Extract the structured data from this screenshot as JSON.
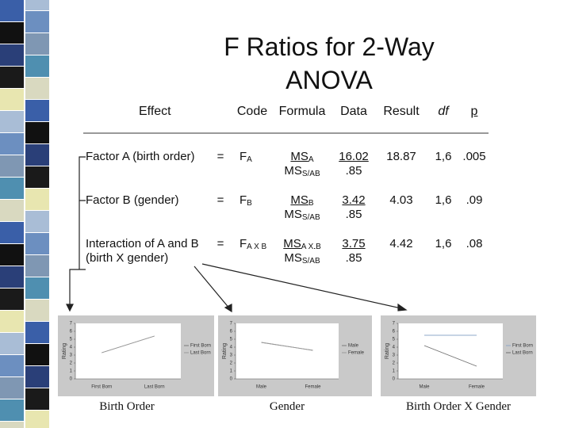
{
  "title": "F Ratios for 2-Way ANOVA",
  "table": {
    "header": [
      "Effect",
      "Code",
      "Formula",
      "Data",
      "Result",
      "df",
      "p"
    ],
    "rows": [
      {
        "effect": [
          "Factor A (birth order)"
        ],
        "eq": "=",
        "code": {
          "main": "F",
          "sub": "A"
        },
        "formula": {
          "num": {
            "main": "MS",
            "sub": "A"
          },
          "den": {
            "main": "MS",
            "sub": "S/AB"
          }
        },
        "data": {
          "num": "16.02",
          "den": ".85"
        },
        "result": "18.87",
        "df": "1,6",
        "p": ".005"
      },
      {
        "effect": [
          "Factor B (gender)"
        ],
        "eq": "=",
        "code": {
          "main": "F",
          "sub": "B"
        },
        "formula": {
          "num": {
            "main": "MS",
            "sub": "B"
          },
          "den": {
            "main": "MS",
            "sub": "S/AB"
          }
        },
        "data": {
          "num": "3.42",
          "den": ".85"
        },
        "result": "4.03",
        "df": "1,6",
        "p": ".09"
      },
      {
        "effect": [
          "Interaction of A and B",
          "(birth X gender)"
        ],
        "eq": "=",
        "code": {
          "main": "F",
          "sub": "A X B"
        },
        "formula": {
          "num": {
            "main": "MS",
            "sub": "A X B"
          },
          "den": {
            "main": "MS",
            "sub": "S/AB"
          }
        },
        "data": {
          "num": "3.75",
          "den": ".85"
        },
        "result": "4.42",
        "df": "1,6",
        "p": ".08"
      }
    ]
  },
  "charts": [
    {
      "type": "line",
      "caption": "Birth Order",
      "ylabel": "Rating",
      "categories": [
        "First Born",
        "Last Born"
      ],
      "series": [
        {
          "name": "First Born",
          "color": "#7a7a7a",
          "values": [
            3.3,
            5.4
          ]
        },
        {
          "name": "Last Born",
          "color": "#9a9a9a",
          "values": [
            3.3,
            5.4
          ]
        }
      ],
      "ylim": [
        0,
        7
      ],
      "yticks": [
        0,
        1,
        2,
        3,
        4,
        5,
        6,
        7
      ]
    },
    {
      "type": "line",
      "caption": "Gender",
      "ylabel": "Rating",
      "categories": [
        "Male",
        "Female"
      ],
      "series": [
        {
          "name": "Male",
          "color": "#7a7a7a",
          "values": [
            4.6,
            3.6
          ]
        },
        {
          "name": "Female",
          "color": "#9a9a9a",
          "values": [
            4.6,
            3.6
          ]
        }
      ],
      "ylim": [
        0,
        7
      ],
      "yticks": [
        0,
        1,
        2,
        3,
        4,
        5,
        6,
        7
      ]
    },
    {
      "type": "line",
      "caption": "Birth Order X Gender",
      "ylabel": "Rating",
      "categories": [
        "Male",
        "Female"
      ],
      "series": [
        {
          "name": "First Born",
          "color": "#8fa8c8",
          "values": [
            5.5,
            5.5
          ]
        },
        {
          "name": "Last Born",
          "color": "#707070",
          "values": [
            4.2,
            1.6
          ]
        }
      ],
      "ylim": [
        0,
        7
      ],
      "yticks": [
        0,
        1,
        2,
        3,
        4,
        5,
        6,
        7
      ]
    }
  ]
}
